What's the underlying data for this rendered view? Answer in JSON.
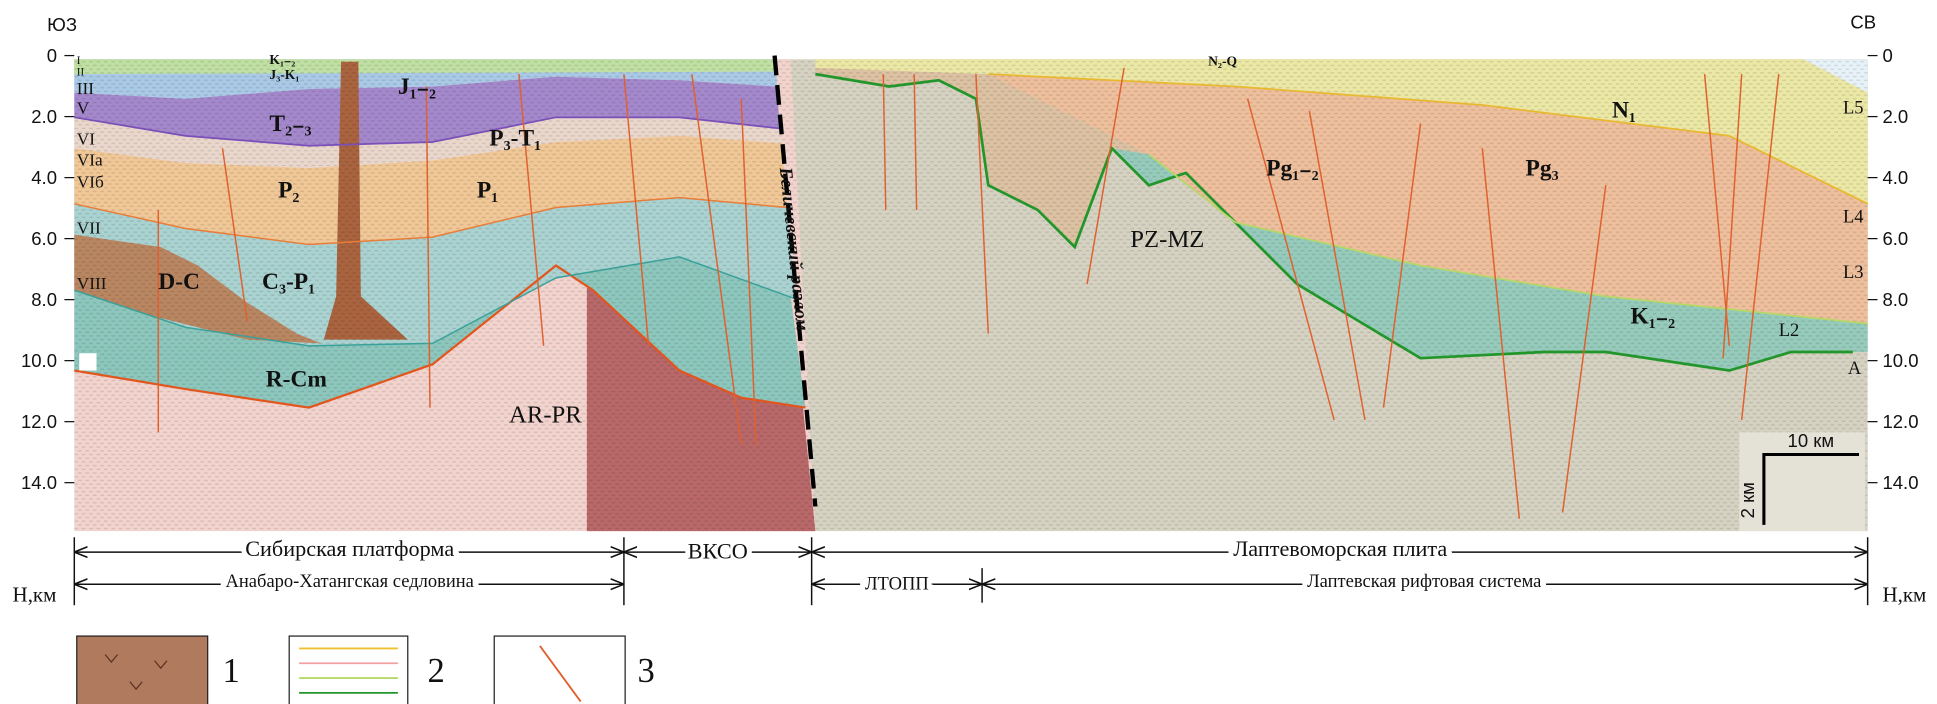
{
  "header": {
    "left": "ЮЗ",
    "right": "СВ"
  },
  "depth_axis": {
    "unit_left": "Н,км",
    "unit_right": "Н,км",
    "ticks_left": [
      "0",
      "2.0",
      "4.0",
      "6.0",
      "8.0",
      "10.0",
      "12.0",
      "14.0"
    ],
    "ticks_right": [
      "0",
      "2.0",
      "4.0",
      "6.0",
      "8.0",
      "10.0",
      "12.0",
      "14.0"
    ]
  },
  "horizons": [
    "I",
    "II",
    "III",
    "V",
    "VI",
    "VIa",
    "VIб",
    "VII",
    "VIII"
  ],
  "units": [
    "K₁₋₂",
    "J₃-K₁",
    "T₂₋₃",
    "J₁₋₂",
    "P₃-T₁",
    "P₂",
    "P₁",
    "D-C",
    "C₃-P₁",
    "R-Cm",
    "AR-PR",
    "N₂-Q",
    "N₁",
    "Pg₁₋₂",
    "Pg₃",
    "PZ-MZ",
    "K₁₋₂"
  ],
  "reflectors": [
    "L5",
    "L4",
    "L3",
    "L2",
    "A"
  ],
  "fault": "Беличевский разлом",
  "regions": {
    "row1": [
      "Сибирская платформа",
      "ВКСО",
      "Лаптевоморская плита"
    ],
    "row2": [
      "Анабаро-Хатангская седловина",
      "ЛТОПП",
      "Лаптевская рифтовая система"
    ]
  },
  "scale": {
    "horizontal": "10 км",
    "vertical": "2 км"
  },
  "legend": [
    "1",
    "2",
    "3"
  ]
}
